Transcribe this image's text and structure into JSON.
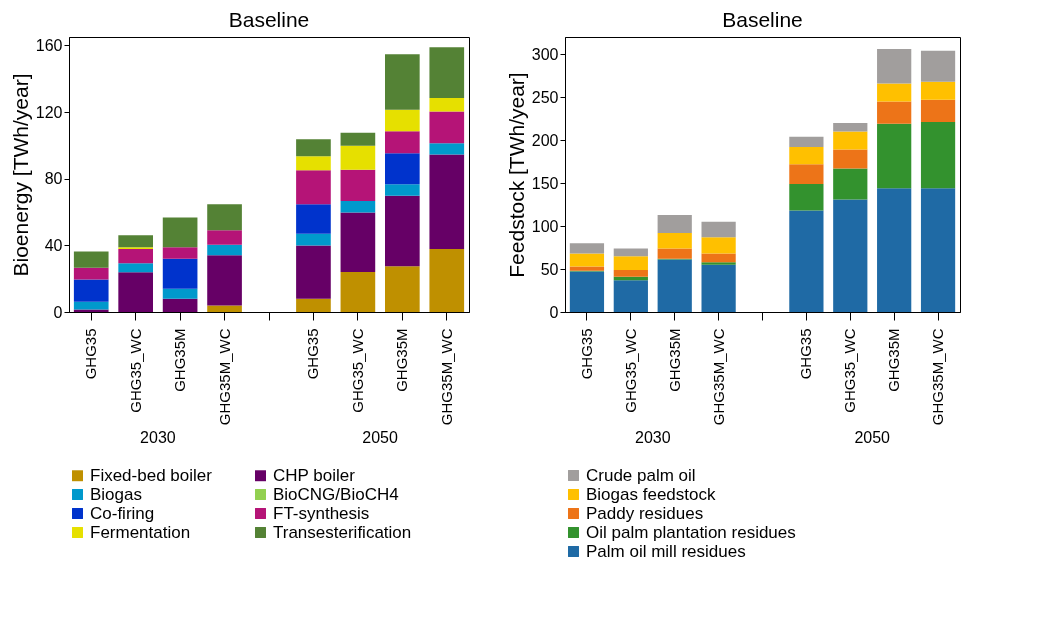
{
  "chart_data": [
    {
      "type": "bar",
      "title": "Baseline",
      "ylabel": "Bioenergy [TWh/year]",
      "stacked": true,
      "legend": "bottom",
      "grid": false,
      "categories": [
        "GHG35",
        "GHG35_WC",
        "GHG35M",
        "GHG35M_WC",
        null,
        "GHG35",
        "GHG35_WC",
        "GHG35M",
        "GHG35M_WC"
      ],
      "annotations": [
        "2030",
        "2050"
      ],
      "ylim": [
        0,
        165
      ],
      "yticks": [
        0,
        40,
        80,
        120,
        160
      ],
      "series": [
        {
          "name": "Fixed-bed boiler",
          "color": "#bf9000",
          "values": [
            0,
            0,
            0,
            3.9,
            null,
            7.9,
            24.0,
            27.5,
            37.8
          ]
        },
        {
          "name": "CHP boiler",
          "color": "#660066",
          "values": [
            1.5,
            23.8,
            8.0,
            30.2,
            null,
            32.0,
            35.7,
            42.3,
            56.7
          ]
        },
        {
          "name": "Biogas",
          "color": "#0099cc",
          "values": [
            4.7,
            5.4,
            6.0,
            6.3,
            null,
            7.1,
            6.9,
            6.9,
            6.7
          ]
        },
        {
          "name": "BioCNG/BioCH4",
          "color": "#92d050",
          "values": [
            0,
            0,
            0,
            0,
            null,
            0,
            0,
            0,
            0
          ]
        },
        {
          "name": "Co-firing",
          "color": "#0033cc",
          "values": [
            13.3,
            0,
            18.0,
            0,
            null,
            17.7,
            0,
            18.5,
            0
          ]
        },
        {
          "name": "FT-synthesis",
          "color": "#b51477",
          "values": [
            7.1,
            8.6,
            6.9,
            8.6,
            null,
            20.4,
            18.7,
            13.3,
            19.1
          ]
        },
        {
          "name": "Fermentation",
          "color": "#e6e000",
          "values": [
            0,
            1.1,
            0,
            0,
            null,
            8.3,
            14.4,
            12.8,
            8.1
          ]
        },
        {
          "name": "Transesterification",
          "color": "#548235",
          "values": [
            9.7,
            7.1,
            17.8,
            15.7,
            null,
            10.3,
            7.9,
            33.3,
            30.5
          ]
        }
      ]
    },
    {
      "type": "bar",
      "title": "Baseline",
      "ylabel": "Feedstock [TWh/year]",
      "stacked": true,
      "legend": "bottom",
      "grid": false,
      "categories": [
        "GHG35",
        "GHG35_WC",
        "GHG35M",
        "GHG35M_WC",
        null,
        "GHG35",
        "GHG35_WC",
        "GHG35M",
        "GHG35M_WC"
      ],
      "annotations": [
        "2030",
        "2050"
      ],
      "ylim": [
        0,
        320
      ],
      "yticks": [
        0,
        50,
        100,
        150,
        200,
        250,
        300
      ],
      "series": [
        {
          "name": "Palm oil mill residues",
          "color": "#1f6aa5",
          "values": [
            47,
            37,
            61,
            55,
            null,
            118,
            131,
            144,
            144
          ]
        },
        {
          "name": "Oil palm plantation residues",
          "color": "#33922e",
          "values": [
            1,
            4,
            1,
            3,
            null,
            31,
            36,
            75,
            77
          ]
        },
        {
          "name": "Paddy residues",
          "color": "#ed7418",
          "values": [
            5,
            8,
            12,
            10,
            null,
            23,
            22,
            26,
            26
          ]
        },
        {
          "name": "Biogas feedstock",
          "color": "#ffc000",
          "values": [
            15,
            16,
            18,
            19,
            null,
            20,
            21,
            21,
            21
          ]
        },
        {
          "name": "Crude palm oil",
          "color": "#a19e9d",
          "values": [
            12,
            9,
            21,
            18,
            null,
            12,
            10,
            40,
            36
          ]
        }
      ]
    }
  ]
}
